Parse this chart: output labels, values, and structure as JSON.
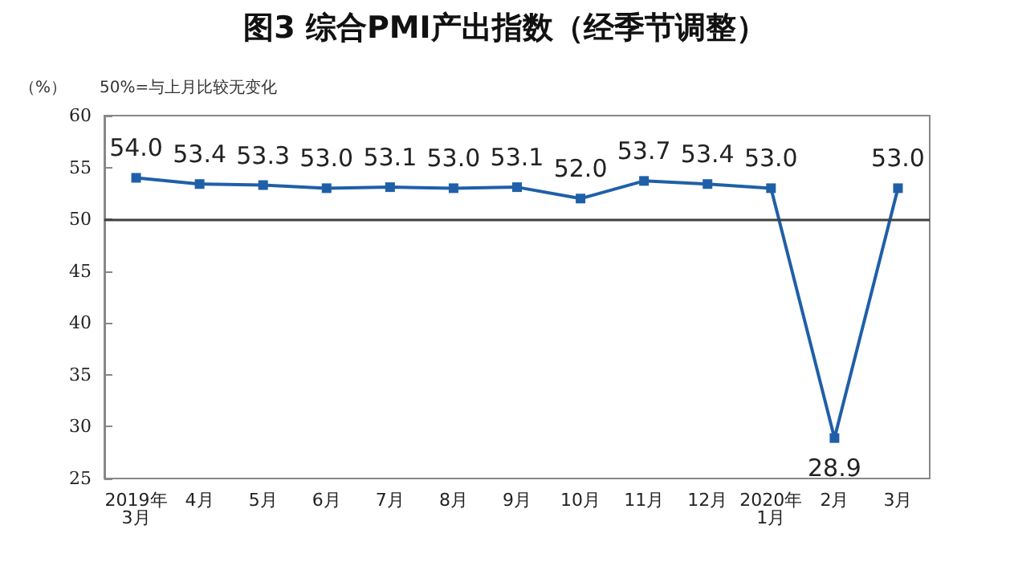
{
  "chart_data": {
    "type": "line",
    "title": "图3 综合PMI产出指数（经季节调整）",
    "ylabel": "（%）",
    "annotations": [
      "50%=与上月比较无变化"
    ],
    "categories": [
      "2019年\n3月",
      "4月",
      "5月",
      "6月",
      "7月",
      "8月",
      "9月",
      "10月",
      "11月",
      "12月",
      "2020年\n1月",
      "2月",
      "3月"
    ],
    "series": [
      {
        "color": "#1f5fa8",
        "values": [
          54.0,
          53.4,
          53.3,
          53.0,
          53.1,
          53.0,
          53.1,
          52.0,
          53.7,
          53.4,
          53.0,
          28.9,
          53.0
        ],
        "value_labels": [
          "54.0",
          "53.4",
          "53.3",
          "53.0",
          "53.1",
          "53.0",
          "53.1",
          "52.0",
          "53.7",
          "53.4",
          "53.0",
          "28.9",
          "53.0"
        ]
      }
    ],
    "ylim": [
      25,
      60
    ],
    "yticks": [
      25,
      30,
      35,
      40,
      45,
      50,
      55,
      60
    ],
    "ref_lines": [
      {
        "axis": "y",
        "value": 50,
        "color": "#404040"
      }
    ],
    "grid": false,
    "marker": "square",
    "line_style": "solid"
  }
}
